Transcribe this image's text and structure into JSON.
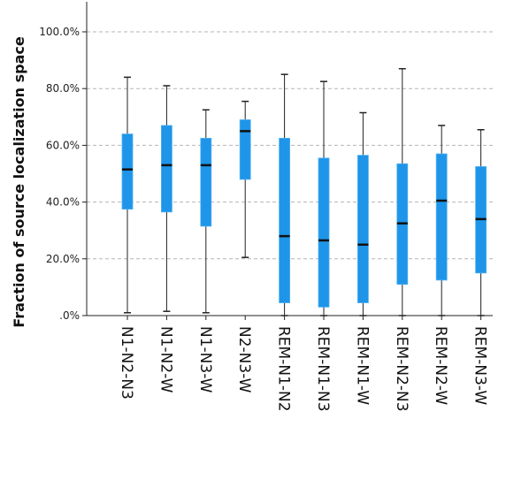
{
  "chart_data": {
    "type": "box",
    "title": "",
    "xlabel": "",
    "ylabel": "Fraction of source localization space",
    "ylim": [
      0,
      110
    ],
    "yticks": [
      0,
      20,
      40,
      60,
      80,
      100
    ],
    "ytick_labels": [
      ".0%",
      "20.0%",
      "40.0%",
      "60.0%",
      "80.0%",
      "100.0%"
    ],
    "grid": "horizontal-dashed",
    "box_color": "#1e95e8",
    "median_color": "#111111",
    "categories": [
      "N1-N2-N3",
      "N1-N2-W",
      "N1-N3-W",
      "N2-N3-W",
      "REM-N1-N2",
      "REM-N1-N3",
      "REM-N1-W",
      "REM-N2-N3",
      "REM-N2-W",
      "REM-N3-W"
    ],
    "boxes": [
      {
        "category": "N1-N2-N3",
        "whisker_low": 1.0,
        "q1": 37.5,
        "median": 51.5,
        "q3": 64.0,
        "whisker_high": 84.0
      },
      {
        "category": "N1-N2-W",
        "whisker_low": 1.5,
        "q1": 36.5,
        "median": 53.0,
        "q3": 67.0,
        "whisker_high": 81.0
      },
      {
        "category": "N1-N3-W",
        "whisker_low": 1.0,
        "q1": 31.5,
        "median": 53.0,
        "q3": 62.5,
        "whisker_high": 72.5
      },
      {
        "category": "N2-N3-W",
        "whisker_low": 20.5,
        "q1": 48.0,
        "median": 65.0,
        "q3": 69.0,
        "whisker_high": 75.5
      },
      {
        "category": "REM-N1-N2",
        "whisker_low": 0.0,
        "q1": 4.5,
        "median": 28.0,
        "q3": 62.5,
        "whisker_high": 85.0
      },
      {
        "category": "REM-N1-N3",
        "whisker_low": 0.0,
        "q1": 3.0,
        "median": 26.5,
        "q3": 55.5,
        "whisker_high": 82.5
      },
      {
        "category": "REM-N1-W",
        "whisker_low": 0.0,
        "q1": 4.5,
        "median": 25.0,
        "q3": 56.5,
        "whisker_high": 71.5
      },
      {
        "category": "REM-N2-N3",
        "whisker_low": 0.0,
        "q1": 11.0,
        "median": 32.5,
        "q3": 53.5,
        "whisker_high": 87.0
      },
      {
        "category": "REM-N2-W",
        "whisker_low": 0.0,
        "q1": 12.5,
        "median": 40.5,
        "q3": 57.0,
        "whisker_high": 67.0
      },
      {
        "category": "REM-N3-W",
        "whisker_low": 0.0,
        "q1": 15.0,
        "median": 34.0,
        "q3": 52.5,
        "whisker_high": 65.5
      }
    ]
  }
}
